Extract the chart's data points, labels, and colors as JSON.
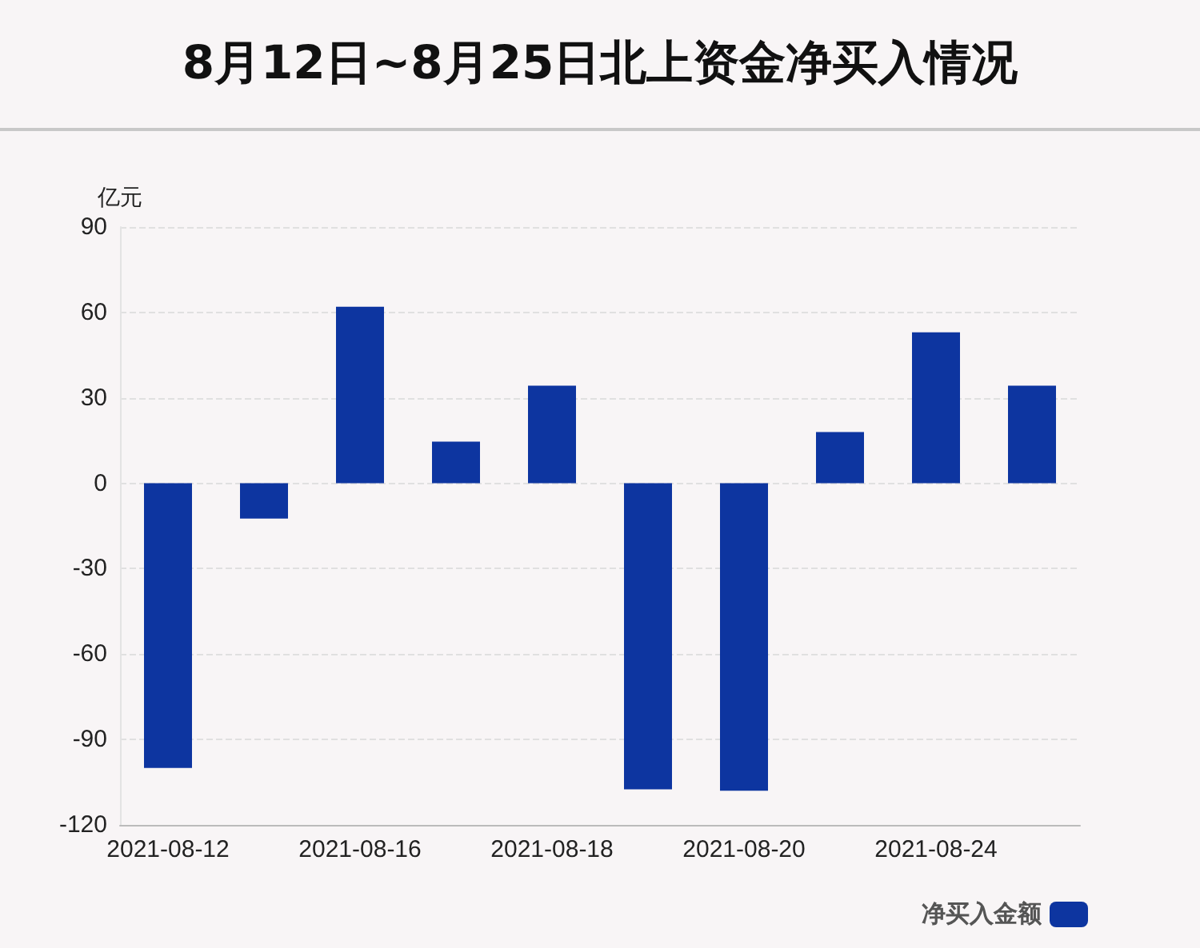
{
  "chart_data": {
    "type": "bar",
    "title": "8月12日~8月25日北上资金净买入情况",
    "ylabel": "亿元",
    "categories": [
      "2021-08-12",
      null,
      "2021-08-16",
      null,
      "2021-08-18",
      null,
      "2021-08-20",
      null,
      "2021-08-24",
      null
    ],
    "series": [
      {
        "name": "净买入金额",
        "color": "#0d35a0",
        "values": [
          -100,
          -12.4,
          62,
          14.6,
          34.3,
          -107.5,
          -108,
          18,
          53,
          34.3
        ]
      }
    ],
    "ylim": [
      -120,
      90
    ],
    "yticks": [
      -120,
      -90,
      -60,
      -30,
      0,
      30,
      60,
      90
    ],
    "grid": "y",
    "legend": "bottom right"
  }
}
